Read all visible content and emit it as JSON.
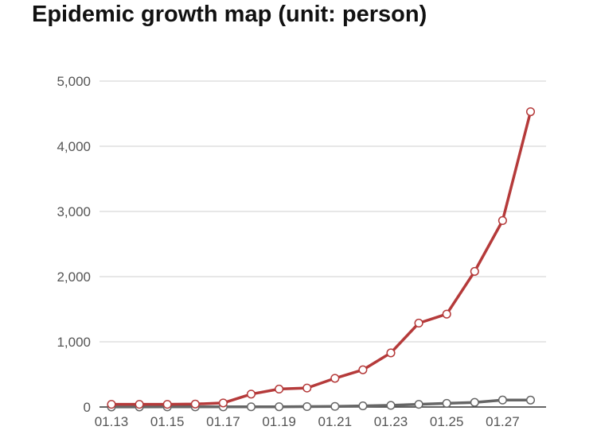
{
  "chart_data": {
    "type": "line",
    "title": "Epidemic growth map (unit: person)",
    "xlabel": "",
    "ylabel": "",
    "x": [
      "01.13",
      "01.14",
      "01.15",
      "01.16",
      "01.17",
      "01.18",
      "01.19",
      "01.20",
      "01.21",
      "01.22",
      "01.23",
      "01.24",
      "01.25",
      "01.26",
      "01.27",
      "01.28"
    ],
    "x_tick_labels": [
      "01.13",
      "01.15",
      "01.17",
      "01.19",
      "01.21",
      "01.23",
      "01.25",
      "01.27"
    ],
    "ylim": [
      0,
      5000
    ],
    "y_ticks": [
      0,
      1000,
      2000,
      3000,
      4000,
      5000
    ],
    "y_tick_labels": [
      "0",
      "1,000",
      "2,000",
      "3,000",
      "4,000",
      "5,000"
    ],
    "grid": true,
    "legend": "none",
    "series": [
      {
        "color": "#b53a3a",
        "values": [
          41,
          41,
          41,
          45,
          62,
          198,
          275,
          291,
          440,
          571,
          830,
          1287,
          1425,
          2080,
          2860,
          4530
        ]
      },
      {
        "color": "#666666",
        "values": [
          1,
          1,
          2,
          2,
          2,
          3,
          4,
          6,
          9,
          17,
          25,
          41,
          56,
          71,
          107,
          106
        ]
      }
    ]
  }
}
